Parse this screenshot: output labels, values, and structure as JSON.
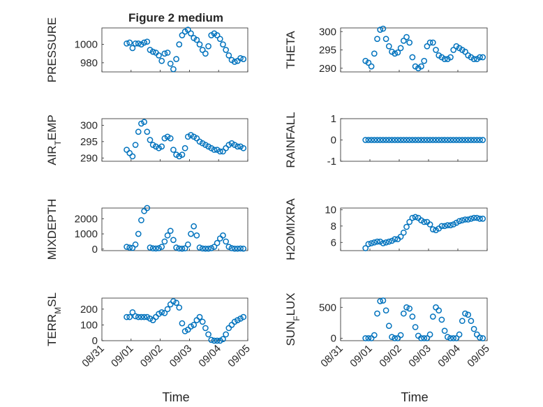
{
  "figure": {
    "title": "Figure 2 medium",
    "xlabel": "Time",
    "marker_color": "#0072BD",
    "axis_color": "#262626",
    "x_tick_labels": [
      "08/31",
      "09/01",
      "09/02",
      "09/03",
      "09/04",
      "09/05"
    ]
  },
  "chart_data": [
    {
      "type": "scatter",
      "panel": "top-left",
      "ylabel": "PRESSURE",
      "ylim": [
        970,
        1018
      ],
      "yticks": [
        980,
        1000
      ],
      "xlim": [
        0,
        5
      ],
      "grid": true,
      "x": [
        0.85,
        0.95,
        1.05,
        1.15,
        1.25,
        1.35,
        1.45,
        1.55,
        1.65,
        1.75,
        1.85,
        1.95,
        2.05,
        2.15,
        2.25,
        2.35,
        2.45,
        2.55,
        2.65,
        2.75,
        2.85,
        2.95,
        3.05,
        3.15,
        3.25,
        3.35,
        3.45,
        3.55,
        3.65,
        3.75,
        3.85,
        3.95,
        4.05,
        4.15,
        4.25,
        4.35,
        4.45,
        4.55,
        4.65,
        4.75,
        4.85
      ],
      "y": [
        1001,
        1002,
        996,
        1001,
        1001,
        1000,
        1002,
        1003,
        994,
        992,
        991,
        988,
        982,
        990,
        991,
        979,
        973,
        984,
        1000,
        1010,
        1014,
        1016,
        1012,
        1007,
        1005,
        1000,
        994,
        990,
        998,
        1010,
        1012,
        1010,
        1006,
        1000,
        994,
        988,
        983,
        981,
        982,
        985,
        984
      ]
    },
    {
      "type": "scatter",
      "panel": "top-right",
      "ylabel": "THETA",
      "ylim": [
        289,
        301
      ],
      "yticks": [
        290,
        295,
        300
      ],
      "xlim": [
        0,
        5
      ],
      "grid": true,
      "x": [
        0.85,
        0.95,
        1.05,
        1.15,
        1.25,
        1.35,
        1.45,
        1.55,
        1.65,
        1.75,
        1.85,
        1.95,
        2.05,
        2.15,
        2.25,
        2.35,
        2.45,
        2.55,
        2.65,
        2.75,
        2.85,
        2.95,
        3.05,
        3.15,
        3.25,
        3.35,
        3.45,
        3.55,
        3.65,
        3.75,
        3.85,
        3.95,
        4.05,
        4.15,
        4.25,
        4.35,
        4.45,
        4.55,
        4.65,
        4.75,
        4.85
      ],
      "y": [
        292,
        291.5,
        290.5,
        294,
        298,
        300.5,
        300.8,
        298,
        296,
        294.5,
        294,
        294.3,
        295.5,
        297.5,
        298.5,
        297,
        293,
        290.5,
        290,
        290.5,
        292,
        296,
        297,
        297,
        295,
        293.5,
        293,
        292.5,
        292.5,
        293,
        295,
        296,
        295.5,
        295,
        294.5,
        293.5,
        293,
        292.5,
        292.5,
        293,
        293
      ]
    },
    {
      "type": "scatter",
      "panel": "row2-left",
      "ylabel": "AIR_TEMP",
      "ylim": [
        289,
        302
      ],
      "yticks": [
        290,
        295,
        300
      ],
      "xlim": [
        0,
        5
      ],
      "grid": true,
      "x": [
        0.85,
        0.95,
        1.05,
        1.15,
        1.25,
        1.35,
        1.45,
        1.55,
        1.65,
        1.75,
        1.85,
        1.95,
        2.05,
        2.15,
        2.25,
        2.35,
        2.45,
        2.55,
        2.65,
        2.75,
        2.85,
        2.95,
        3.05,
        3.15,
        3.25,
        3.35,
        3.45,
        3.55,
        3.65,
        3.75,
        3.85,
        3.95,
        4.05,
        4.15,
        4.25,
        4.35,
        4.45,
        4.55,
        4.65,
        4.75,
        4.85
      ],
      "y": [
        292.5,
        291.5,
        290.5,
        294,
        298,
        300.5,
        301,
        298,
        295.5,
        294,
        293.5,
        293,
        293.5,
        296,
        296.5,
        296,
        292.5,
        291,
        290.5,
        291,
        293,
        296.5,
        297,
        296.5,
        296,
        295,
        294.5,
        294,
        293.5,
        293,
        292.5,
        292.5,
        292,
        292,
        293,
        294,
        294.5,
        294,
        293.5,
        293.5,
        293
      ]
    },
    {
      "type": "scatter",
      "panel": "row2-right",
      "ylabel": "RAINFALL",
      "ylim": [
        -1,
        1
      ],
      "yticks": [
        -1,
        0,
        1
      ],
      "xlim": [
        0,
        5
      ],
      "grid": true,
      "x": [
        0.85,
        0.95,
        1.05,
        1.15,
        1.25,
        1.35,
        1.45,
        1.55,
        1.65,
        1.75,
        1.85,
        1.95,
        2.05,
        2.15,
        2.25,
        2.35,
        2.45,
        2.55,
        2.65,
        2.75,
        2.85,
        2.95,
        3.05,
        3.15,
        3.25,
        3.35,
        3.45,
        3.55,
        3.65,
        3.75,
        3.85,
        3.95,
        4.05,
        4.15,
        4.25,
        4.35,
        4.45,
        4.55,
        4.65,
        4.75,
        4.85
      ],
      "y": [
        0,
        0,
        0,
        0,
        0,
        0,
        0,
        0,
        0,
        0,
        0,
        0,
        0,
        0,
        0,
        0,
        0,
        0,
        0,
        0,
        0,
        0,
        0,
        0,
        0,
        0,
        0,
        0,
        0,
        0,
        0,
        0,
        0,
        0,
        0,
        0,
        0,
        0,
        0,
        0,
        0
      ]
    },
    {
      "type": "scatter",
      "panel": "row3-left",
      "ylabel": "MIXDEPTH",
      "ylim": [
        -100,
        2700
      ],
      "yticks": [
        0,
        1000,
        2000
      ],
      "xlim": [
        0,
        5
      ],
      "grid": true,
      "x": [
        0.85,
        0.95,
        1.05,
        1.15,
        1.25,
        1.35,
        1.45,
        1.55,
        1.65,
        1.75,
        1.85,
        1.95,
        2.05,
        2.15,
        2.25,
        2.35,
        2.45,
        2.55,
        2.65,
        2.75,
        2.85,
        2.95,
        3.05,
        3.15,
        3.25,
        3.35,
        3.45,
        3.55,
        3.65,
        3.75,
        3.85,
        3.95,
        4.05,
        4.15,
        4.25,
        4.35,
        4.45,
        4.55,
        4.65,
        4.75,
        4.85
      ],
      "y": [
        150,
        100,
        80,
        300,
        1000,
        1900,
        2500,
        2700,
        100,
        50,
        40,
        60,
        150,
        500,
        900,
        1200,
        600,
        100,
        40,
        30,
        50,
        300,
        1000,
        1500,
        900,
        100,
        40,
        30,
        30,
        60,
        150,
        400,
        700,
        900,
        500,
        150,
        60,
        30,
        30,
        40,
        30
      ]
    },
    {
      "type": "scatter",
      "panel": "row3-right",
      "ylabel": "H2OMIXRA",
      "ylim": [
        5,
        10.2
      ],
      "yticks": [
        6,
        8,
        10
      ],
      "xlim": [
        0,
        5
      ],
      "grid": true,
      "x": [
        0.85,
        0.95,
        1.05,
        1.15,
        1.25,
        1.35,
        1.45,
        1.55,
        1.65,
        1.75,
        1.85,
        1.95,
        2.05,
        2.15,
        2.25,
        2.35,
        2.45,
        2.55,
        2.65,
        2.75,
        2.85,
        2.95,
        3.05,
        3.15,
        3.25,
        3.35,
        3.45,
        3.55,
        3.65,
        3.75,
        3.85,
        3.95,
        4.05,
        4.15,
        4.25,
        4.35,
        4.45,
        4.55,
        4.65,
        4.75,
        4.85
      ],
      "y": [
        5.3,
        5.8,
        5.9,
        6,
        6.1,
        6.1,
        5.9,
        6,
        6.1,
        6.2,
        6.4,
        6.4,
        6.7,
        7.2,
        7.9,
        8.5,
        9,
        9.1,
        9,
        8.7,
        8.5,
        8.5,
        8.2,
        7.6,
        7.5,
        7.7,
        8,
        8,
        8.1,
        8.1,
        8.2,
        8.4,
        8.6,
        8.7,
        8.8,
        8.8,
        8.9,
        9,
        9,
        8.9,
        8.9
      ]
    },
    {
      "type": "scatter",
      "panel": "bottom-left",
      "ylabel": "TERR_MSL",
      "ylim": [
        0,
        270
      ],
      "yticks": [
        0,
        100,
        200
      ],
      "xlim": [
        0,
        5
      ],
      "grid": true,
      "x": [
        0.85,
        0.95,
        1.05,
        1.15,
        1.25,
        1.35,
        1.45,
        1.55,
        1.65,
        1.75,
        1.85,
        1.95,
        2.05,
        2.15,
        2.25,
        2.35,
        2.45,
        2.55,
        2.65,
        2.75,
        2.85,
        2.95,
        3.05,
        3.15,
        3.25,
        3.35,
        3.45,
        3.55,
        3.65,
        3.75,
        3.85,
        3.95,
        4.05,
        4.15,
        4.25,
        4.35,
        4.45,
        4.55,
        4.65,
        4.75,
        4.85
      ],
      "y": [
        150,
        150,
        180,
        155,
        150,
        150,
        150,
        150,
        140,
        130,
        150,
        170,
        180,
        175,
        200,
        230,
        250,
        240,
        210,
        110,
        60,
        70,
        90,
        100,
        130,
        150,
        120,
        80,
        40,
        5,
        0,
        0,
        0,
        10,
        40,
        80,
        100,
        120,
        130,
        140,
        150
      ]
    },
    {
      "type": "scatter",
      "panel": "bottom-right",
      "ylabel": "SUN_FLUX",
      "ylim": [
        -40,
        650
      ],
      "yticks": [
        0,
        500
      ],
      "xlim": [
        0,
        5
      ],
      "grid": true,
      "x": [
        0.85,
        0.95,
        1.05,
        1.15,
        1.25,
        1.35,
        1.45,
        1.55,
        1.65,
        1.75,
        1.85,
        1.95,
        2.05,
        2.15,
        2.25,
        2.35,
        2.45,
        2.55,
        2.65,
        2.75,
        2.85,
        2.95,
        3.05,
        3.15,
        3.25,
        3.35,
        3.45,
        3.55,
        3.65,
        3.75,
        3.85,
        3.95,
        4.05,
        4.15,
        4.25,
        4.35,
        4.45,
        4.55,
        4.65,
        4.75,
        4.85
      ],
      "y": [
        0,
        0,
        0,
        50,
        400,
        600,
        610,
        450,
        200,
        20,
        0,
        0,
        50,
        400,
        500,
        480,
        350,
        180,
        40,
        0,
        0,
        0,
        60,
        350,
        500,
        450,
        300,
        120,
        20,
        0,
        0,
        0,
        60,
        280,
        400,
        380,
        280,
        150,
        60,
        10,
        0
      ]
    }
  ]
}
